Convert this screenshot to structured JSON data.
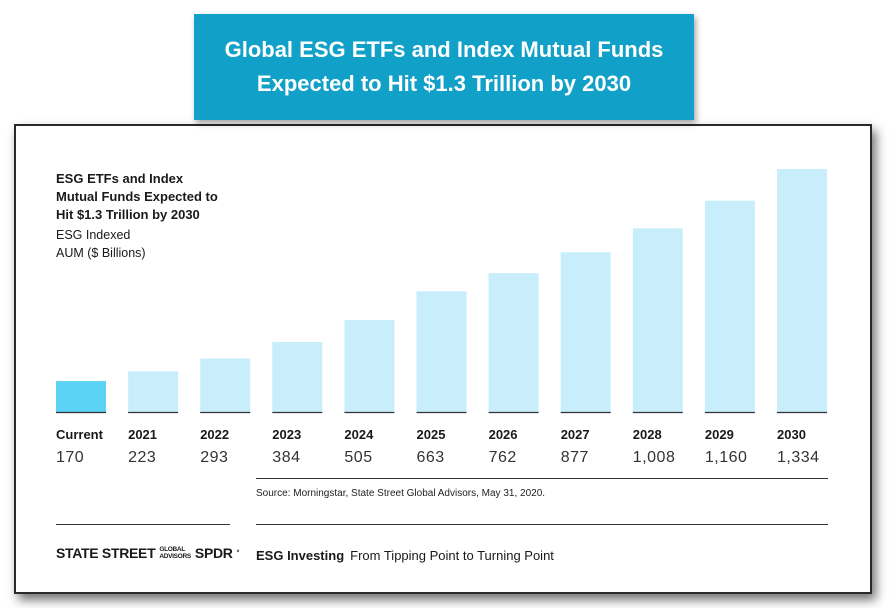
{
  "banner": {
    "line1": "Global ESG ETFs and Index Mutual Funds",
    "line2": "Expected to Hit $1.3 Trillion by 2030"
  },
  "chart_data": {
    "type": "bar",
    "title_lines": [
      "ESG ETFs and Index",
      "Mutual Funds Expected to",
      "Hit $1.3 Trillion by 2030"
    ],
    "ylabel_lines": [
      "ESG Indexed",
      "AUM ($ Billions)"
    ],
    "categories": [
      "Current",
      "2021",
      "2022",
      "2023",
      "2024",
      "2025",
      "2026",
      "2027",
      "2028",
      "2029",
      "2030"
    ],
    "values": [
      170,
      223,
      293,
      384,
      505,
      663,
      762,
      877,
      1008,
      1160,
      1334
    ],
    "value_labels": [
      "170",
      "223",
      "293",
      "384",
      "505",
      "663",
      "762",
      "877",
      "1,008",
      "1,160",
      "1,334"
    ],
    "ylim": [
      0,
      1334
    ],
    "grid": false,
    "colors": {
      "highlight": "#5bd3f5",
      "bar": "#c8eefb",
      "baseline": "#333333"
    },
    "highlight_index": 0
  },
  "source": "Source: Morningstar, State Street Global Advisors, May 31, 2020.",
  "footer": {
    "brand": "STATE STREET",
    "brand_small_1": "GLOBAL",
    "brand_small_2": "ADVISORS",
    "brand_spdr": "SPDR",
    "section": "ESG Investing",
    "tagline": "From Tipping Point to Turning Point"
  }
}
